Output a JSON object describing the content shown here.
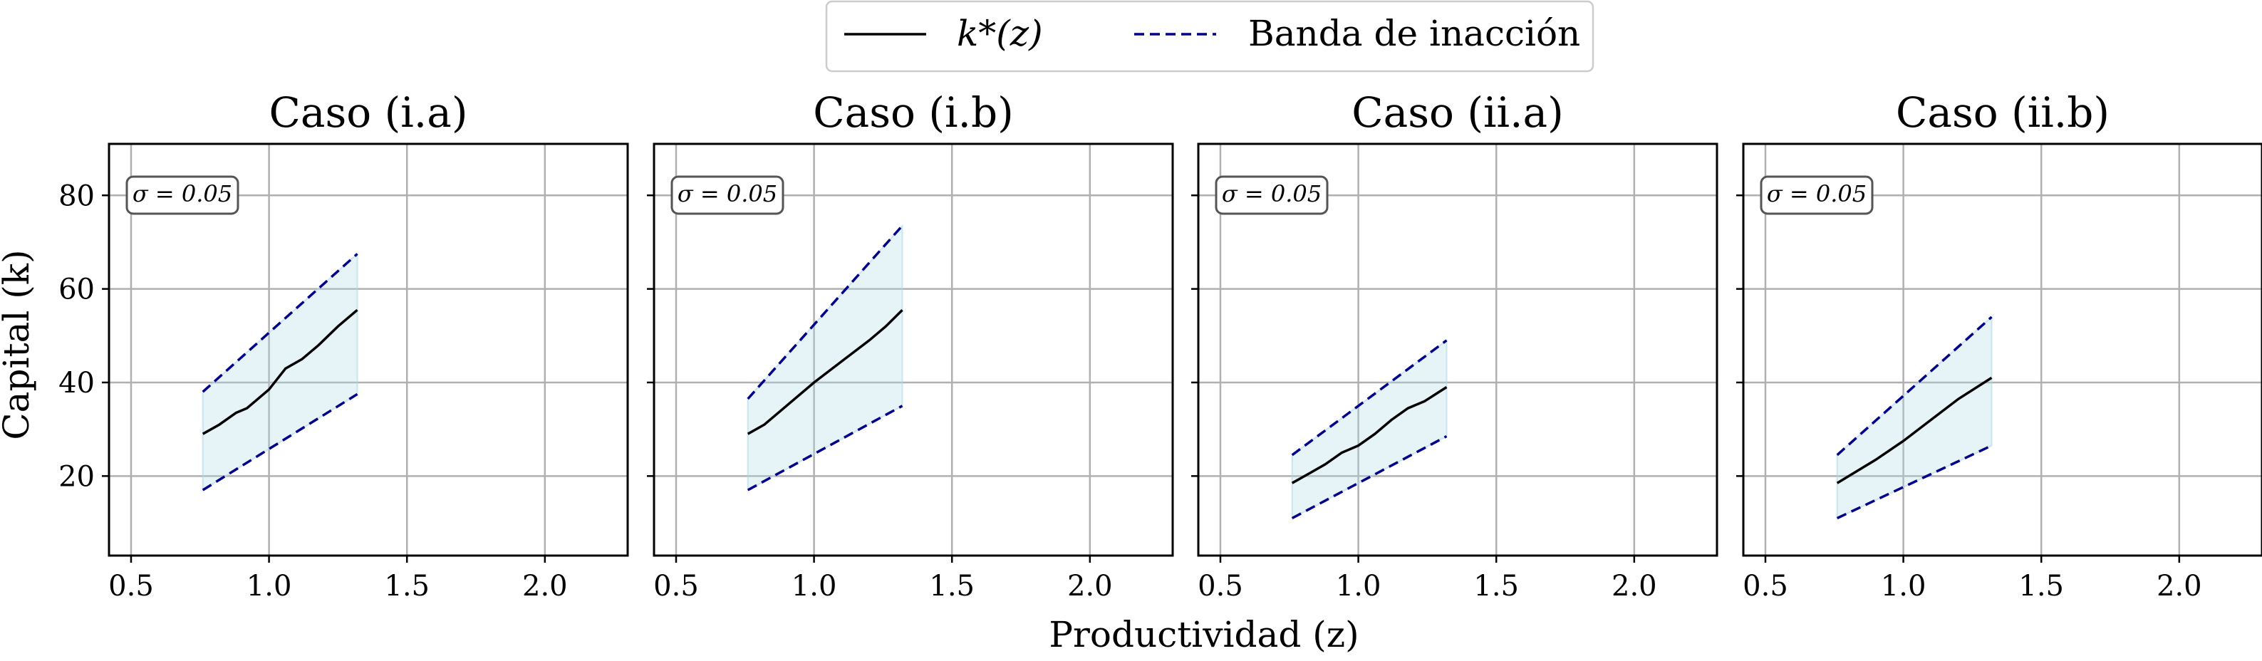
{
  "figure": {
    "xlabel": "Productividad (z)",
    "ylabel": "Capital (k)"
  },
  "legend": {
    "items": [
      {
        "label": "k*(z)",
        "style": "solid",
        "color": "#000000"
      },
      {
        "label": "Banda de inacción",
        "style": "dashed",
        "color": "#00008b"
      }
    ],
    "placement": "top-center"
  },
  "colors": {
    "policy_line": "#000000",
    "band_line": "#00008b",
    "band_fill": "#add8e6",
    "grid": "#b0b0b0"
  },
  "chart_data": [
    {
      "type": "line",
      "title": "Caso (i.a)",
      "annotation": "σ = 0.05",
      "xlim": [
        0.42,
        2.3
      ],
      "ylim": [
        3,
        91
      ],
      "xticks": [
        0.5,
        1.0,
        1.5,
        2.0
      ],
      "xtick_labels": [
        "0.5",
        "1.0",
        "1.5",
        "2.0"
      ],
      "yticks": [
        20,
        40,
        60,
        80
      ],
      "ytick_labels": [
        "20",
        "40",
        "60",
        "80"
      ],
      "grid": true,
      "series": [
        {
          "name": "k*(z)",
          "x": [
            0.76,
            0.82,
            0.88,
            0.92,
            1.0,
            1.06,
            1.12,
            1.18,
            1.25,
            1.32
          ],
          "y": [
            29,
            31,
            33.5,
            34.5,
            38.5,
            43,
            45,
            48,
            52,
            55.5
          ]
        },
        {
          "name": "Banda de inacción",
          "x": [
            0.76,
            1.32
          ],
          "y": [
            38,
            67.5
          ]
        },
        {
          "name": "Banda de inacción",
          "x": [
            0.76,
            1.32
          ],
          "y": [
            17,
            37.5
          ]
        }
      ]
    },
    {
      "type": "line",
      "title": "Caso (i.b)",
      "annotation": "σ = 0.05",
      "xlim": [
        0.42,
        2.3
      ],
      "ylim": [
        3,
        91
      ],
      "xticks": [
        0.5,
        1.0,
        1.5,
        2.0
      ],
      "xtick_labels": [
        "0.5",
        "1.0",
        "1.5",
        "2.0"
      ],
      "yticks": [
        20,
        40,
        60,
        80
      ],
      "ytick_labels": [
        "20",
        "40",
        "60",
        "80"
      ],
      "grid": true,
      "series": [
        {
          "name": "k*(z)",
          "x": [
            0.76,
            0.82,
            0.9,
            1.0,
            1.1,
            1.2,
            1.26,
            1.32
          ],
          "y": [
            29,
            31,
            35,
            40,
            44.5,
            49,
            52,
            55.5
          ]
        },
        {
          "name": "Banda de inacción",
          "x": [
            0.76,
            1.32
          ],
          "y": [
            36.5,
            73.5
          ]
        },
        {
          "name": "Banda de inacción",
          "x": [
            0.76,
            1.32
          ],
          "y": [
            17,
            35
          ]
        }
      ]
    },
    {
      "type": "line",
      "title": "Caso (ii.a)",
      "annotation": "σ = 0.05",
      "xlim": [
        0.42,
        2.3
      ],
      "ylim": [
        3,
        91
      ],
      "xticks": [
        0.5,
        1.0,
        1.5,
        2.0
      ],
      "xtick_labels": [
        "0.5",
        "1.0",
        "1.5",
        "2.0"
      ],
      "yticks": [
        20,
        40,
        60,
        80
      ],
      "ytick_labels": [
        "20",
        "40",
        "60",
        "80"
      ],
      "grid": true,
      "series": [
        {
          "name": "k*(z)",
          "x": [
            0.76,
            0.82,
            0.88,
            0.94,
            1.0,
            1.06,
            1.12,
            1.18,
            1.24,
            1.32
          ],
          "y": [
            18.5,
            20.5,
            22.5,
            25,
            26.5,
            29,
            32,
            34.5,
            36,
            39
          ]
        },
        {
          "name": "Banda de inacción",
          "x": [
            0.76,
            1.32
          ],
          "y": [
            24.5,
            49
          ]
        },
        {
          "name": "Banda de inacción",
          "x": [
            0.76,
            1.32
          ],
          "y": [
            11,
            28.5
          ]
        }
      ]
    },
    {
      "type": "line",
      "title": "Caso (ii.b)",
      "annotation": "σ = 0.05",
      "xlim": [
        0.42,
        2.3
      ],
      "ylim": [
        3,
        91
      ],
      "xticks": [
        0.5,
        1.0,
        1.5,
        2.0
      ],
      "xtick_labels": [
        "0.5",
        "1.0",
        "1.5",
        "2.0"
      ],
      "yticks": [
        20,
        40,
        60,
        80
      ],
      "ytick_labels": [
        "20",
        "40",
        "60",
        "80"
      ],
      "grid": true,
      "series": [
        {
          "name": "k*(z)",
          "x": [
            0.76,
            0.9,
            1.0,
            1.1,
            1.2,
            1.32
          ],
          "y": [
            18.5,
            23.5,
            27.5,
            32,
            36.5,
            41
          ]
        },
        {
          "name": "Banda de inacción",
          "x": [
            0.76,
            1.32
          ],
          "y": [
            24.5,
            54
          ]
        },
        {
          "name": "Banda de inacción",
          "x": [
            0.76,
            1.32
          ],
          "y": [
            11,
            26.5
          ]
        }
      ]
    }
  ]
}
